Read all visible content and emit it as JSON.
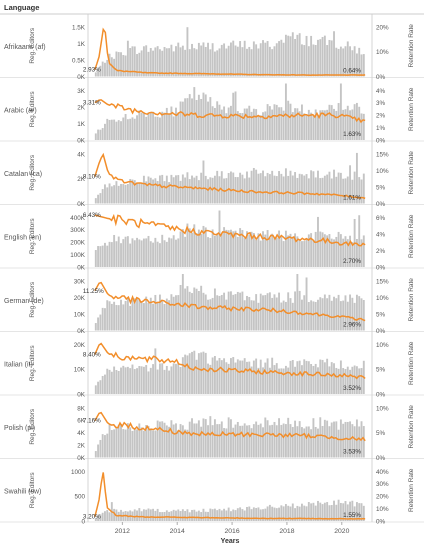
{
  "chart_data": {
    "type": "bar",
    "header": "Language",
    "xlabel": "Years",
    "x_ticks": [
      "2012",
      "2014",
      "2016",
      "2018",
      "2020"
    ],
    "x_range": [
      2010.75,
      2021.1
    ],
    "y_left_label": "Reg. Editors",
    "y_right_label": "Retention Rate",
    "colors": {
      "bars": "#c4c4c4",
      "line": "#f28e2b",
      "axis": "#999999",
      "text": "#555555"
    },
    "panels": [
      {
        "language": "Afrikaans (af)",
        "ylim_left": [
          0,
          1700
        ],
        "yticks_left": [
          "0K",
          "0.5K",
          "1K",
          "1.5K"
        ],
        "ylim_right": [
          0,
          0.24
        ],
        "yticks_right": [
          "0%",
          "10%",
          "20%"
        ],
        "start_label": "2.93%",
        "end_label": "0.64%",
        "editors_anchor": [
          [
            0,
            120
          ],
          [
            0.4,
            550
          ],
          [
            1.3,
            800
          ],
          [
            3,
            880
          ],
          [
            6,
            950
          ],
          [
            6.75,
            960
          ],
          [
            7,
            1200
          ],
          [
            9,
            1000
          ],
          [
            10,
            750
          ]
        ],
        "retention_anchor": [
          [
            0,
            0.0293
          ],
          [
            0.15,
            0.08
          ],
          [
            0.35,
            0.23
          ],
          [
            0.5,
            0.06
          ],
          [
            0.8,
            0.025
          ],
          [
            2,
            0.015
          ],
          [
            4,
            0.012
          ],
          [
            6,
            0.008
          ],
          [
            8,
            0.006
          ],
          [
            10,
            0.0064
          ]
        ]
      },
      {
        "language": "Arabic (ar)",
        "ylim_left": [
          0,
          4500
        ],
        "yticks_left": [
          "0K",
          "1K",
          "2K",
          "3K"
        ],
        "ylim_right": [
          0,
          0.05
        ],
        "yticks_right": [
          "0%",
          "1%",
          "2%",
          "3%",
          "4%"
        ],
        "start_label": "3.31%",
        "end_label": "1.63%",
        "editors_anchor": [
          [
            0,
            500
          ],
          [
            0.4,
            1500
          ],
          [
            1.5,
            2000
          ],
          [
            3,
            2300
          ],
          [
            3.7,
            3700
          ],
          [
            4.5,
            2700
          ],
          [
            6,
            2300
          ],
          [
            7,
            2800
          ],
          [
            8,
            2300
          ],
          [
            9,
            2700
          ],
          [
            10,
            2500
          ]
        ],
        "retention_anchor": [
          [
            0,
            0.0331
          ],
          [
            0.2,
            0.036
          ],
          [
            0.5,
            0.031
          ],
          [
            1.5,
            0.026
          ],
          [
            3,
            0.023
          ],
          [
            4,
            0.022
          ],
          [
            6,
            0.021
          ],
          [
            8,
            0.022
          ],
          [
            9,
            0.022
          ],
          [
            10,
            0.0163
          ]
        ]
      },
      {
        "language": "Catalan (ca)",
        "ylim_left": [
          0,
          4300
        ],
        "yticks_left": [
          "0K",
          "2K",
          "4K"
        ],
        "ylim_right": [
          0,
          0.17
        ],
        "yticks_right": [
          "0%",
          "5%",
          "10%",
          "15%"
        ],
        "start_label": "8.10%",
        "end_label": "1.61%",
        "editors_anchor": [
          [
            0,
            400
          ],
          [
            0.4,
            1400
          ],
          [
            1.5,
            1800
          ],
          [
            3,
            2000
          ],
          [
            4,
            2200
          ],
          [
            6,
            2300
          ],
          [
            8,
            2300
          ],
          [
            10,
            2100
          ]
        ],
        "retention_anchor": [
          [
            0,
            0.081
          ],
          [
            0.15,
            0.12
          ],
          [
            0.3,
            0.15
          ],
          [
            0.5,
            0.09
          ],
          [
            1,
            0.065
          ],
          [
            2,
            0.055
          ],
          [
            4,
            0.045
          ],
          [
            6,
            0.035
          ],
          [
            8,
            0.03
          ],
          [
            9,
            0.025
          ],
          [
            10,
            0.0161
          ]
        ]
      },
      {
        "language": "English (en)",
        "ylim_left": [
          0,
          420000
        ],
        "yticks_left": [
          "0K",
          "100K",
          "200K",
          "300K",
          "400K"
        ],
        "ylim_right": [
          0,
          0.07
        ],
        "yticks_right": [
          "0%",
          "2%",
          "4%",
          "6%"
        ],
        "start_label": "6.43%",
        "end_label": "2.70%",
        "editors_anchor": [
          [
            0,
            150000
          ],
          [
            0.5,
            200000
          ],
          [
            1.5,
            210000
          ],
          [
            3,
            220000
          ],
          [
            3.5,
            300000
          ],
          [
            4.2,
            260000
          ],
          [
            6,
            240000
          ],
          [
            8,
            230000
          ],
          [
            10,
            220000
          ]
        ],
        "retention_anchor": [
          [
            0,
            0.0643
          ],
          [
            0.5,
            0.06
          ],
          [
            1,
            0.058
          ],
          [
            2,
            0.052
          ],
          [
            3,
            0.047
          ],
          [
            4,
            0.043
          ],
          [
            5,
            0.04
          ],
          [
            6,
            0.038
          ],
          [
            8,
            0.034
          ],
          [
            10,
            0.027
          ]
        ]
      },
      {
        "language": "German (de)",
        "ylim_left": [
          0,
          32000
        ],
        "yticks_left": [
          "0K",
          "10K",
          "20K",
          "30K"
        ],
        "ylim_right": [
          0,
          0.16
        ],
        "yticks_right": [
          "0%",
          "5%",
          "10%",
          "15%"
        ],
        "start_label": "11.25%",
        "end_label": "2.96%",
        "editors_anchor": [
          [
            0,
            5000
          ],
          [
            0.4,
            16000
          ],
          [
            1.5,
            17000
          ],
          [
            3,
            18000
          ],
          [
            3.5,
            23000
          ],
          [
            4.5,
            20000
          ],
          [
            6,
            19000
          ],
          [
            8,
            19000
          ],
          [
            10,
            18000
          ]
        ],
        "retention_anchor": [
          [
            0,
            0.1125
          ],
          [
            0.2,
            0.14
          ],
          [
            0.5,
            0.1
          ],
          [
            1.5,
            0.085
          ],
          [
            3,
            0.075
          ],
          [
            4,
            0.065
          ],
          [
            6,
            0.06
          ],
          [
            7,
            0.055
          ],
          [
            9,
            0.04
          ],
          [
            10,
            0.0296
          ]
        ]
      },
      {
        "language": "Italian (it)",
        "ylim_left": [
          0,
          22000
        ],
        "yticks_left": [
          "0K",
          "10K",
          "20K"
        ],
        "ylim_right": [
          0,
          0.12
        ],
        "yticks_right": [
          "0%",
          "5%",
          "10%"
        ],
        "start_label": "8.40%",
        "end_label": "3.52%",
        "editors_anchor": [
          [
            0,
            3000
          ],
          [
            0.4,
            9000
          ],
          [
            1.5,
            10000
          ],
          [
            3,
            11000
          ],
          [
            3.6,
            16000
          ],
          [
            4.5,
            13000
          ],
          [
            6,
            12000
          ],
          [
            8,
            12000
          ],
          [
            10,
            11000
          ]
        ],
        "retention_anchor": [
          [
            0,
            0.084
          ],
          [
            0.2,
            0.11
          ],
          [
            0.5,
            0.085
          ],
          [
            1.5,
            0.075
          ],
          [
            3,
            0.07
          ],
          [
            3.6,
            0.055
          ],
          [
            5,
            0.05
          ],
          [
            7,
            0.045
          ],
          [
            9,
            0.04
          ],
          [
            10,
            0.0352
          ]
        ]
      },
      {
        "language": "Polish (pl)",
        "ylim_left": [
          0,
          8200
        ],
        "yticks_left": [
          "0K",
          "2K",
          "4K",
          "6K",
          "8K"
        ],
        "ylim_right": [
          0,
          0.11
        ],
        "yticks_right": [
          "0%",
          "5%",
          "10%"
        ],
        "start_label": "7.16%",
        "end_label": "3.53%",
        "editors_anchor": [
          [
            0,
            1000
          ],
          [
            0.4,
            4000
          ],
          [
            1.5,
            4500
          ],
          [
            3,
            4600
          ],
          [
            4,
            5200
          ],
          [
            6,
            5000
          ],
          [
            8,
            5000
          ],
          [
            10,
            4800
          ]
        ],
        "retention_anchor": [
          [
            0,
            0.0716
          ],
          [
            0.2,
            0.09
          ],
          [
            0.5,
            0.065
          ],
          [
            1.5,
            0.06
          ],
          [
            3,
            0.05
          ],
          [
            4,
            0.045
          ],
          [
            6,
            0.045
          ],
          [
            8,
            0.042
          ],
          [
            10,
            0.0353
          ]
        ]
      },
      {
        "language": "Swahili (sw)",
        "ylim_left": [
          0,
          1100
        ],
        "yticks_left": [
          "0",
          "500",
          "1000"
        ],
        "ylim_right": [
          0,
          0.42
        ],
        "yticks_right": [
          "0%",
          "10%",
          "20%",
          "30%",
          "40%"
        ],
        "start_label": "3.20%",
        "end_label": "1.55%",
        "editors_anchor": [
          [
            0,
            50
          ],
          [
            0.4,
            200
          ],
          [
            1.5,
            220
          ],
          [
            3,
            200
          ],
          [
            4,
            210
          ],
          [
            5,
            230
          ],
          [
            6,
            250
          ],
          [
            8,
            320
          ],
          [
            9,
            380
          ],
          [
            10,
            300
          ]
        ],
        "retention_anchor": [
          [
            0,
            0.032
          ],
          [
            0.15,
            0.15
          ],
          [
            0.3,
            0.38
          ],
          [
            0.45,
            0.1
          ],
          [
            0.8,
            0.04
          ],
          [
            2,
            0.03
          ],
          [
            4,
            0.025
          ],
          [
            6,
            0.02
          ],
          [
            8,
            0.018
          ],
          [
            10,
            0.0155
          ]
        ]
      }
    ]
  }
}
